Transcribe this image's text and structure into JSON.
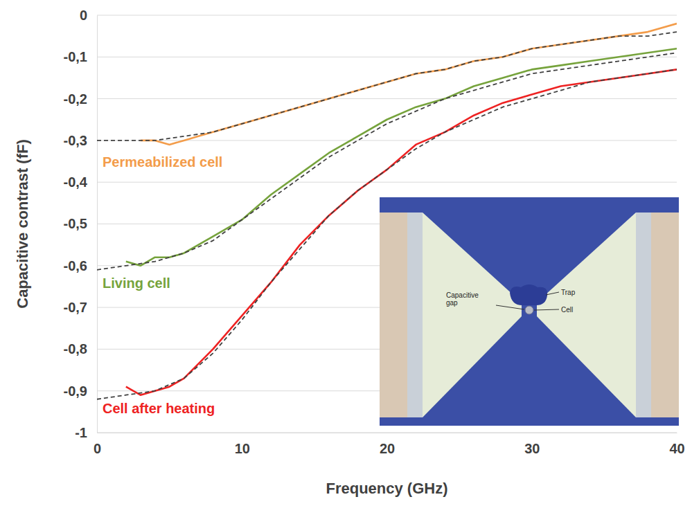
{
  "chart_data": {
    "type": "line",
    "x_label": "Frequency (GHz)",
    "y_label": "Capacitive contrast (fF)",
    "xlim": [
      0,
      40
    ],
    "xticks": [
      0,
      10,
      20,
      30,
      40
    ],
    "ylim": [
      -1,
      0
    ],
    "yticks": [
      {
        "value": -1,
        "label": "-1"
      },
      {
        "value": -0.9,
        "label": "-0,9"
      },
      {
        "value": -0.8,
        "label": "-0,8"
      },
      {
        "value": -0.7,
        "label": "-0,7"
      },
      {
        "value": -0.6,
        "label": "-0,6"
      },
      {
        "value": -0.5,
        "label": "-0,5"
      },
      {
        "value": -0.4,
        "label": "-0,4"
      },
      {
        "value": -0.3,
        "label": "-0,3"
      },
      {
        "value": -0.2,
        "label": "-0,2"
      },
      {
        "value": -0.1,
        "label": "-0,1"
      },
      0
    ],
    "grid": true,
    "series": [
      {
        "name": "Permeabilized cell",
        "color": "#f39c4a",
        "line_style": "solid",
        "x": [
          3,
          4,
          5,
          6,
          7,
          8,
          10,
          12,
          14,
          16,
          18,
          20,
          22,
          24,
          26,
          28,
          30,
          32,
          34,
          36,
          38,
          40
        ],
        "values": [
          -0.3,
          -0.3,
          -0.31,
          -0.3,
          -0.29,
          -0.28,
          -0.26,
          -0.24,
          -0.22,
          -0.2,
          -0.18,
          -0.16,
          -0.14,
          -0.13,
          -0.11,
          -0.1,
          -0.08,
          -0.07,
          -0.06,
          -0.05,
          -0.04,
          -0.02
        ]
      },
      {
        "name": "Living cell",
        "color": "#76a33c",
        "line_style": "solid",
        "x": [
          2,
          3,
          4,
          5,
          6,
          8,
          10,
          12,
          14,
          16,
          18,
          20,
          22,
          24,
          26,
          28,
          30,
          32,
          34,
          36,
          38,
          40
        ],
        "values": [
          -0.59,
          -0.6,
          -0.58,
          -0.58,
          -0.57,
          -0.53,
          -0.49,
          -0.43,
          -0.38,
          -0.33,
          -0.29,
          -0.25,
          -0.22,
          -0.2,
          -0.17,
          -0.15,
          -0.13,
          -0.12,
          -0.11,
          -0.1,
          -0.09,
          -0.08
        ]
      },
      {
        "name": "Cell after heating",
        "color": "#ee2222",
        "line_style": "solid",
        "x": [
          2,
          3,
          4,
          5,
          6,
          8,
          10,
          12,
          14,
          16,
          18,
          20,
          22,
          24,
          26,
          28,
          30,
          32,
          34,
          36,
          38,
          40
        ],
        "values": [
          -0.89,
          -0.91,
          -0.9,
          -0.89,
          -0.87,
          -0.8,
          -0.72,
          -0.64,
          -0.55,
          -0.48,
          -0.42,
          -0.37,
          -0.31,
          -0.28,
          -0.24,
          -0.21,
          -0.19,
          -0.17,
          -0.16,
          -0.15,
          -0.14,
          -0.13
        ]
      },
      {
        "color": "#404040",
        "line_style": "dashed",
        "x": [
          0,
          2,
          4,
          6,
          8,
          10,
          12,
          14,
          16,
          18,
          20,
          22,
          24,
          26,
          28,
          30,
          32,
          34,
          36,
          38,
          40
        ],
        "values": [
          -0.3,
          -0.3,
          -0.3,
          -0.29,
          -0.28,
          -0.26,
          -0.24,
          -0.22,
          -0.2,
          -0.18,
          -0.16,
          -0.14,
          -0.13,
          -0.11,
          -0.1,
          -0.08,
          -0.07,
          -0.06,
          -0.05,
          -0.05,
          -0.04
        ]
      },
      {
        "color": "#404040",
        "line_style": "dashed",
        "x": [
          0,
          2,
          4,
          6,
          8,
          10,
          12,
          14,
          16,
          18,
          20,
          22,
          24,
          26,
          28,
          30,
          32,
          34,
          36,
          38,
          40
        ],
        "values": [
          -0.61,
          -0.6,
          -0.59,
          -0.57,
          -0.54,
          -0.49,
          -0.44,
          -0.39,
          -0.34,
          -0.3,
          -0.26,
          -0.23,
          -0.2,
          -0.18,
          -0.16,
          -0.14,
          -0.13,
          -0.12,
          -0.11,
          -0.1,
          -0.09
        ]
      },
      {
        "color": "#404040",
        "line_style": "dashed",
        "x": [
          0,
          2,
          4,
          6,
          8,
          10,
          12,
          14,
          16,
          18,
          20,
          22,
          24,
          26,
          28,
          30,
          32,
          34,
          36,
          38,
          40
        ],
        "values": [
          -0.92,
          -0.91,
          -0.9,
          -0.87,
          -0.81,
          -0.73,
          -0.64,
          -0.56,
          -0.48,
          -0.42,
          -0.37,
          -0.32,
          -0.28,
          -0.25,
          -0.22,
          -0.2,
          -0.18,
          -0.16,
          -0.15,
          -0.14,
          -0.13
        ]
      }
    ],
    "annotations": [
      "Trap",
      "Cell",
      "Capacitive gap"
    ]
  }
}
